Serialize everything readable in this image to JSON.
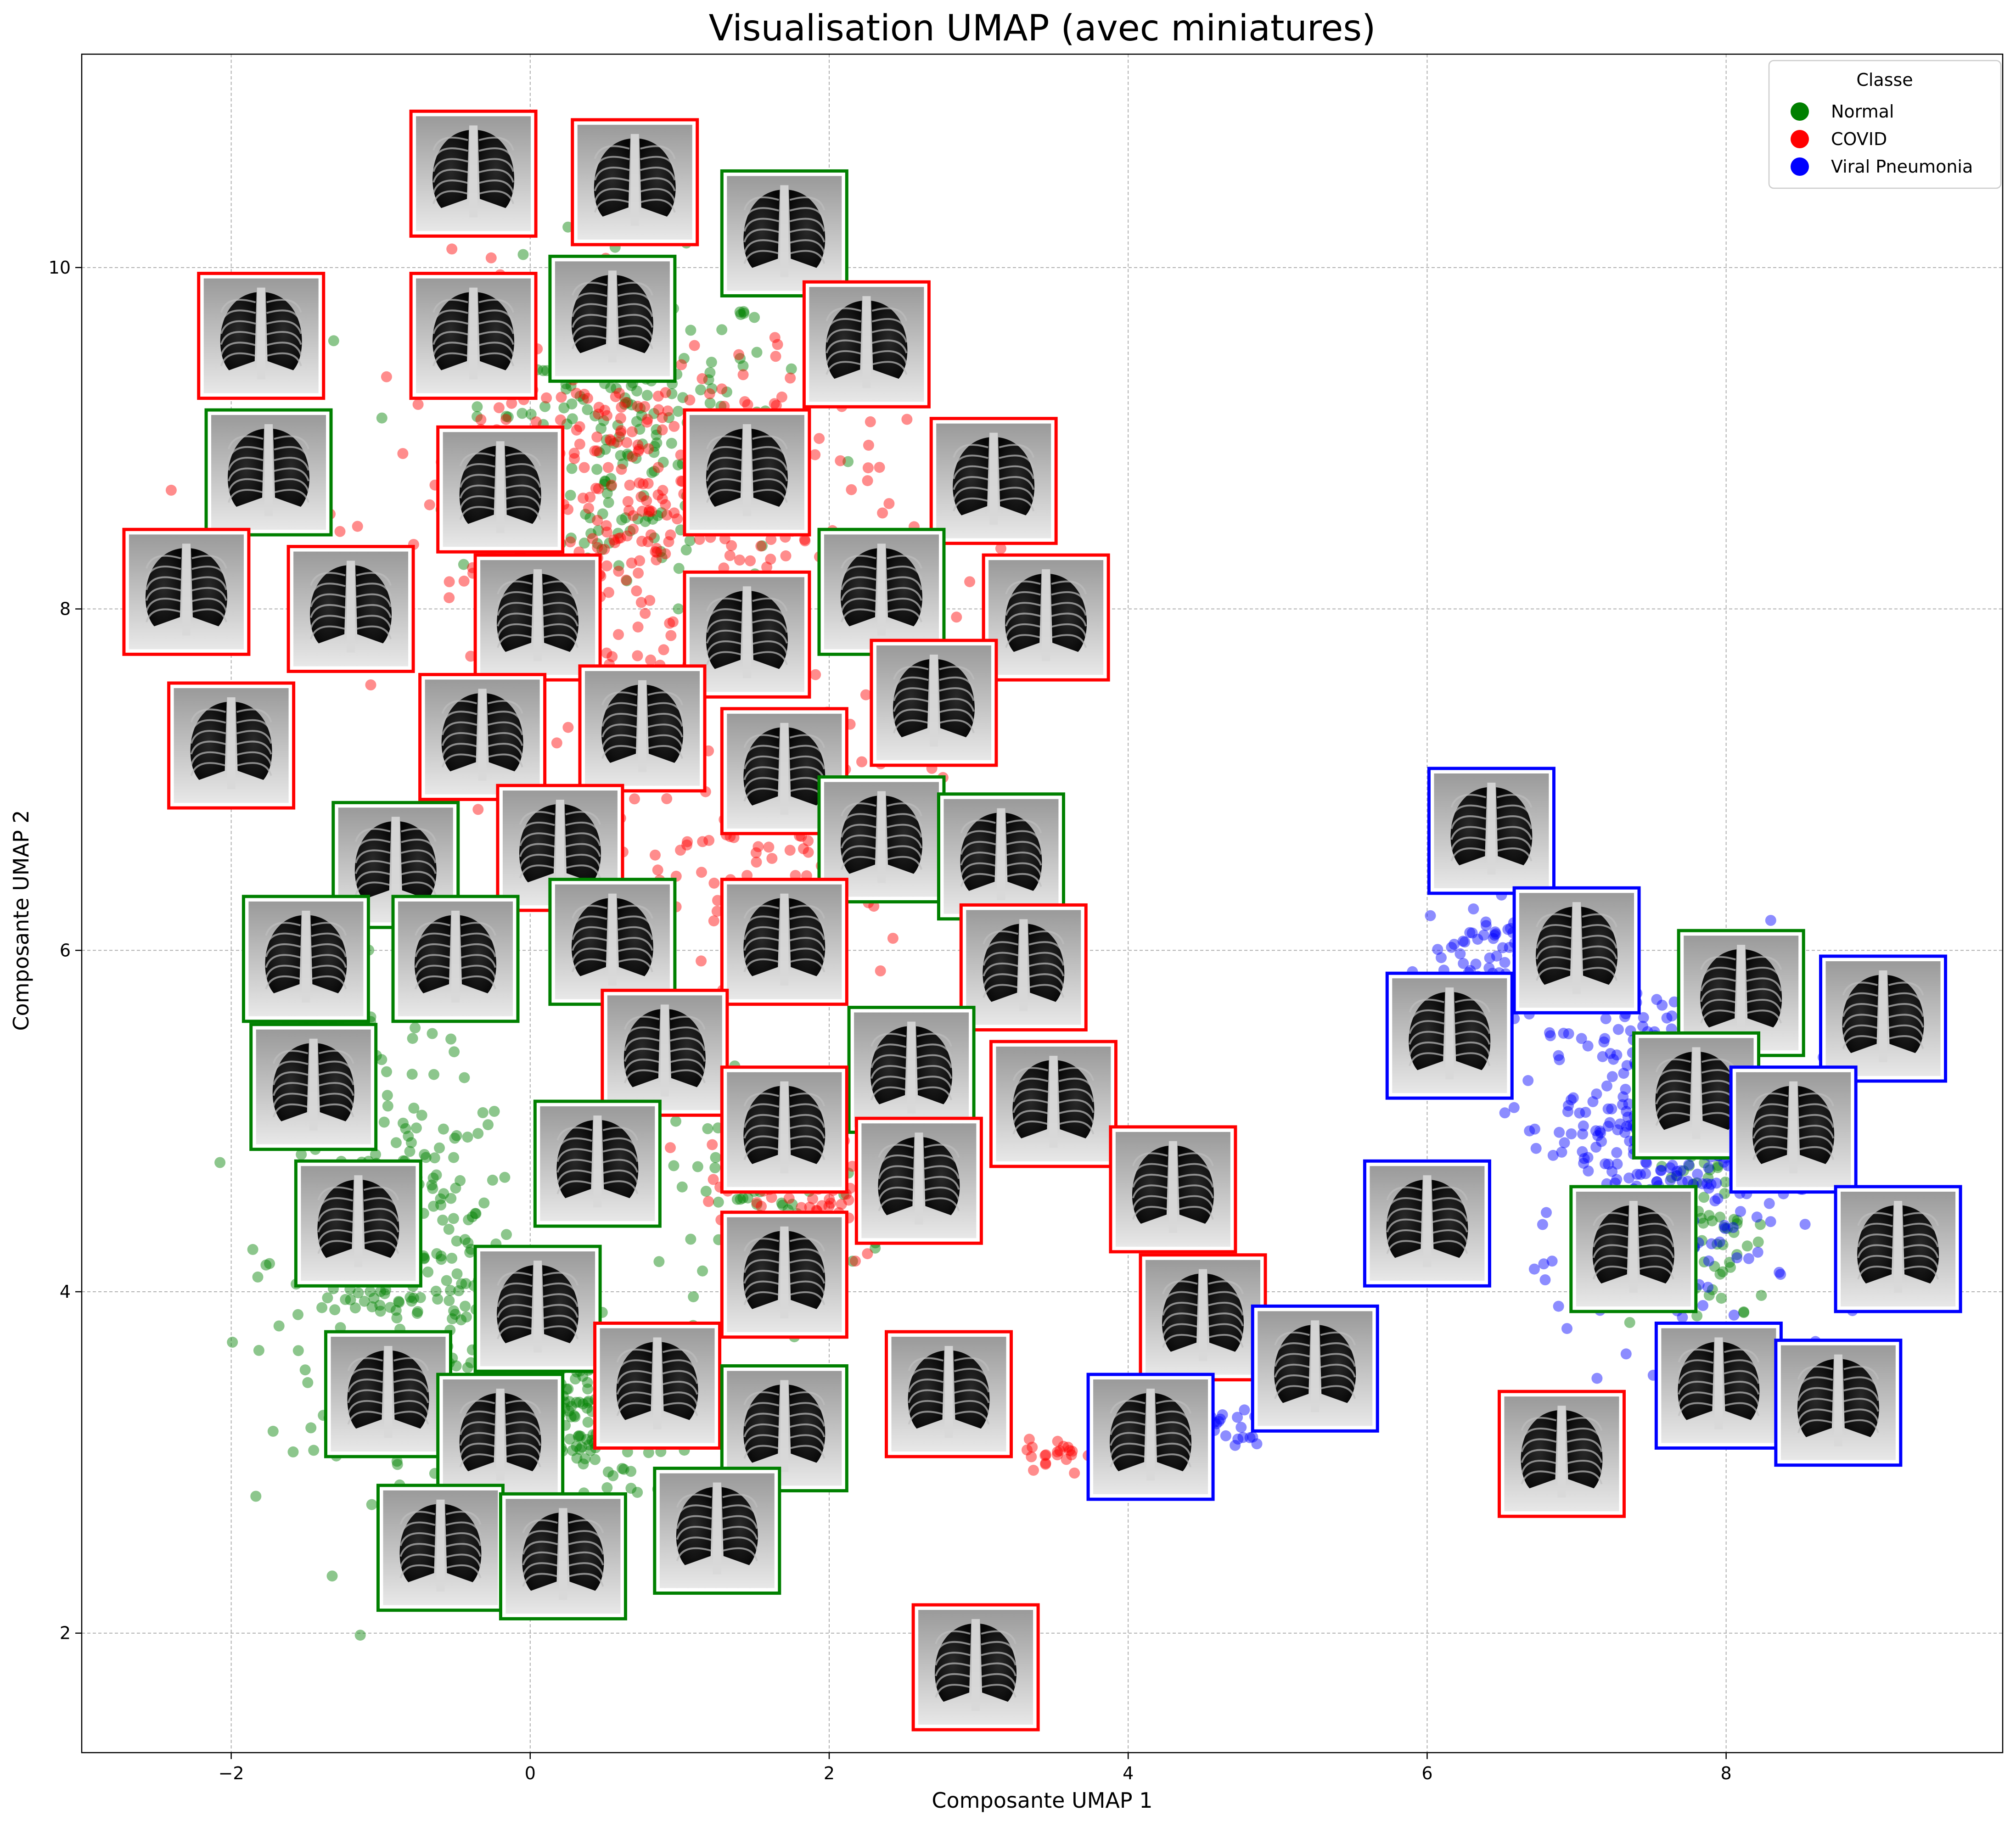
{
  "chart_data": {
    "type": "scatter",
    "title": "Visualisation UMAP (avec miniatures)",
    "xlabel": "Composante UMAP 1",
    "ylabel": "Composante UMAP 2",
    "xlim": [
      -3.0,
      9.85
    ],
    "ylim": [
      1.3,
      11.25
    ],
    "x_ticks": [
      -2,
      0,
      2,
      4,
      6,
      8
    ],
    "y_ticks": [
      2,
      4,
      6,
      8,
      10
    ],
    "x_tick_labels": [
      "−2",
      "0",
      "2",
      "4",
      "6",
      "8"
    ],
    "y_tick_labels": [
      "2",
      "4",
      "6",
      "8",
      "10"
    ],
    "grid": true,
    "legend": {
      "title": "Classe",
      "placement": "top-right",
      "entries": [
        {
          "label": "Normal",
          "color": "#008000"
        },
        {
          "label": "COVID",
          "color": "#ff0000"
        },
        {
          "label": "Viral Pneumonia",
          "color": "#0000ff"
        }
      ]
    },
    "series": [
      {
        "name": "Normal",
        "color": "#008000",
        "cloud": [
          {
            "cx": 0.6,
            "cy": 9.0,
            "sx": 1.0,
            "sy": 0.9,
            "n": 260
          },
          {
            "cx": -0.9,
            "cy": 4.2,
            "sx": 0.75,
            "sy": 1.0,
            "n": 300
          },
          {
            "cx": 0.2,
            "cy": 3.3,
            "sx": 0.8,
            "sy": 0.45,
            "n": 240
          },
          {
            "cx": -1.4,
            "cy": 5.6,
            "sx": 0.35,
            "sy": 0.6,
            "n": 90
          },
          {
            "cx": 1.6,
            "cy": 4.6,
            "sx": 0.6,
            "sy": 0.6,
            "n": 110
          },
          {
            "cx": 7.9,
            "cy": 4.3,
            "sx": 0.35,
            "sy": 0.5,
            "n": 70
          }
        ]
      },
      {
        "name": "COVID",
        "color": "#ff0000",
        "cloud": [
          {
            "cx": 0.7,
            "cy": 8.6,
            "sx": 1.5,
            "sy": 1.1,
            "n": 420
          },
          {
            "cx": 1.6,
            "cy": 6.6,
            "sx": 1.0,
            "sy": 0.7,
            "n": 160
          },
          {
            "cx": 1.8,
            "cy": 4.7,
            "sx": 0.6,
            "sy": 0.5,
            "n": 90
          },
          {
            "cx": 3.6,
            "cy": 3.05,
            "sx": 0.25,
            "sy": 0.08,
            "n": 25
          }
        ]
      },
      {
        "name": "Viral Pneumonia",
        "color": "#0000ff",
        "cloud": [
          {
            "cx": 7.6,
            "cy": 4.9,
            "sx": 0.8,
            "sy": 0.85,
            "n": 440
          },
          {
            "cx": 6.4,
            "cy": 5.9,
            "sx": 0.4,
            "sy": 0.4,
            "n": 80
          },
          {
            "cx": 4.6,
            "cy": 3.2,
            "sx": 0.3,
            "sy": 0.1,
            "n": 25
          }
        ]
      }
    ],
    "thumbnails": [
      {
        "x": -0.38,
        "y": 10.55,
        "cls": "COVID"
      },
      {
        "x": 0.7,
        "y": 10.5,
        "cls": "COVID"
      },
      {
        "x": 1.7,
        "y": 10.2,
        "cls": "Normal"
      },
      {
        "x": 0.55,
        "y": 9.7,
        "cls": "Normal"
      },
      {
        "x": -0.38,
        "y": 9.6,
        "cls": "COVID"
      },
      {
        "x": -1.8,
        "y": 9.6,
        "cls": "COVID"
      },
      {
        "x": 2.25,
        "y": 9.55,
        "cls": "COVID"
      },
      {
        "x": -1.75,
        "y": 8.8,
        "cls": "Normal"
      },
      {
        "x": 1.45,
        "y": 8.8,
        "cls": "COVID"
      },
      {
        "x": 3.1,
        "y": 8.75,
        "cls": "COVID"
      },
      {
        "x": -0.2,
        "y": 8.7,
        "cls": "COVID"
      },
      {
        "x": -2.3,
        "y": 8.1,
        "cls": "COVID"
      },
      {
        "x": -1.2,
        "y": 8.0,
        "cls": "COVID"
      },
      {
        "x": 0.05,
        "y": 7.95,
        "cls": "COVID"
      },
      {
        "x": 2.35,
        "y": 8.1,
        "cls": "Normal"
      },
      {
        "x": 1.45,
        "y": 7.85,
        "cls": "COVID"
      },
      {
        "x": 3.45,
        "y": 7.95,
        "cls": "COVID"
      },
      {
        "x": -2.0,
        "y": 7.2,
        "cls": "COVID"
      },
      {
        "x": -0.32,
        "y": 7.25,
        "cls": "COVID"
      },
      {
        "x": 0.75,
        "y": 7.3,
        "cls": "COVID"
      },
      {
        "x": 2.7,
        "y": 7.45,
        "cls": "COVID"
      },
      {
        "x": 1.7,
        "y": 7.05,
        "cls": "COVID"
      },
      {
        "x": 2.35,
        "y": 6.65,
        "cls": "Normal"
      },
      {
        "x": 3.15,
        "y": 6.55,
        "cls": "Normal"
      },
      {
        "x": 0.2,
        "y": 6.6,
        "cls": "COVID"
      },
      {
        "x": -0.9,
        "y": 6.5,
        "cls": "Normal"
      },
      {
        "x": -1.5,
        "y": 5.95,
        "cls": "Normal"
      },
      {
        "x": -0.5,
        "y": 5.95,
        "cls": "Normal"
      },
      {
        "x": 0.55,
        "y": 6.05,
        "cls": "Normal"
      },
      {
        "x": 1.7,
        "y": 6.05,
        "cls": "COVID"
      },
      {
        "x": 3.3,
        "y": 5.9,
        "cls": "COVID"
      },
      {
        "x": 0.9,
        "y": 5.4,
        "cls": "COVID"
      },
      {
        "x": 2.55,
        "y": 5.3,
        "cls": "Normal"
      },
      {
        "x": -1.45,
        "y": 5.2,
        "cls": "Normal"
      },
      {
        "x": 1.7,
        "y": 4.95,
        "cls": "COVID"
      },
      {
        "x": 3.5,
        "y": 5.1,
        "cls": "COVID"
      },
      {
        "x": 0.45,
        "y": 4.75,
        "cls": "Normal"
      },
      {
        "x": 2.6,
        "y": 4.65,
        "cls": "COVID"
      },
      {
        "x": 4.3,
        "y": 4.6,
        "cls": "COVID"
      },
      {
        "x": -1.15,
        "y": 4.4,
        "cls": "Normal"
      },
      {
        "x": 0.05,
        "y": 3.9,
        "cls": "Normal"
      },
      {
        "x": 1.7,
        "y": 4.1,
        "cls": "COVID"
      },
      {
        "x": 4.5,
        "y": 3.85,
        "cls": "COVID"
      },
      {
        "x": -0.95,
        "y": 3.4,
        "cls": "Normal"
      },
      {
        "x": 0.85,
        "y": 3.45,
        "cls": "COVID"
      },
      {
        "x": -0.2,
        "y": 3.15,
        "cls": "Normal"
      },
      {
        "x": 1.7,
        "y": 3.2,
        "cls": "Normal"
      },
      {
        "x": 2.8,
        "y": 3.4,
        "cls": "COVID"
      },
      {
        "x": 4.15,
        "y": 3.15,
        "cls": "Viral Pneumonia"
      },
      {
        "x": -0.6,
        "y": 2.5,
        "cls": "Normal"
      },
      {
        "x": 0.22,
        "y": 2.45,
        "cls": "Normal"
      },
      {
        "x": 1.25,
        "y": 2.6,
        "cls": "Normal"
      },
      {
        "x": 2.98,
        "y": 1.8,
        "cls": "COVID"
      },
      {
        "x": 6.43,
        "y": 6.7,
        "cls": "Viral Pneumonia"
      },
      {
        "x": 7.0,
        "y": 6.0,
        "cls": "Viral Pneumonia"
      },
      {
        "x": 8.1,
        "y": 5.75,
        "cls": "Normal"
      },
      {
        "x": 9.05,
        "y": 5.6,
        "cls": "Viral Pneumonia"
      },
      {
        "x": 6.15,
        "y": 5.5,
        "cls": "Viral Pneumonia"
      },
      {
        "x": 7.8,
        "y": 5.15,
        "cls": "Normal"
      },
      {
        "x": 8.45,
        "y": 4.95,
        "cls": "Viral Pneumonia"
      },
      {
        "x": 6.0,
        "y": 4.4,
        "cls": "Viral Pneumonia"
      },
      {
        "x": 7.38,
        "y": 4.25,
        "cls": "Normal"
      },
      {
        "x": 9.15,
        "y": 4.25,
        "cls": "Viral Pneumonia"
      },
      {
        "x": 5.25,
        "y": 3.55,
        "cls": "Viral Pneumonia"
      },
      {
        "x": 7.95,
        "y": 3.45,
        "cls": "Viral Pneumonia"
      },
      {
        "x": 6.9,
        "y": 3.05,
        "cls": "COVID"
      },
      {
        "x": 8.75,
        "y": 3.35,
        "cls": "Viral Pneumonia"
      }
    ]
  }
}
